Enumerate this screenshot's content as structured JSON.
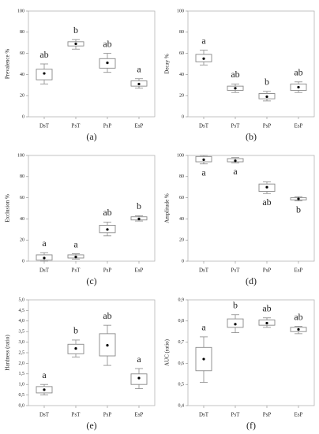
{
  "chart_data": [
    {
      "type": "box",
      "label": "(a)",
      "y_label": "Prevalence %",
      "categories": [
        "DsT",
        "PsT",
        "PsP",
        "EsP"
      ],
      "whisker_low": [
        31,
        64,
        42,
        27
      ],
      "q1": [
        35,
        67,
        46,
        29
      ],
      "q3": [
        45,
        71,
        55,
        34
      ],
      "whisker_high": [
        50,
        73,
        60,
        36
      ],
      "mean": [
        41,
        69,
        51,
        31
      ],
      "letters": [
        "ab",
        "b",
        "ab",
        "a"
      ],
      "letter_position": "above",
      "ylim": [
        0,
        100
      ],
      "yticks": [
        0,
        20,
        40,
        60,
        80,
        100
      ],
      "color": "#888888"
    },
    {
      "type": "box",
      "label": "(b)",
      "y_label": "Decay %",
      "categories": [
        "DsT",
        "PsT",
        "PsP",
        "EsP"
      ],
      "whisker_low": [
        49,
        23,
        15,
        23
      ],
      "q1": [
        52,
        25,
        17,
        25
      ],
      "q3": [
        59,
        29,
        22,
        31
      ],
      "whisker_high": [
        63,
        31,
        24,
        33
      ],
      "mean": [
        55,
        27,
        19,
        28
      ],
      "letters": [
        "a",
        "ab",
        "b",
        "ab"
      ],
      "letter_position": "above",
      "ylim": [
        0,
        100
      ],
      "yticks": [
        0,
        20,
        40,
        60,
        80,
        100
      ],
      "color": "#888888"
    },
    {
      "type": "box",
      "label": "(c)",
      "y_label": "Exclusion %",
      "categories": [
        "DsT",
        "PsT",
        "PsP",
        "EsP"
      ],
      "whisker_low": [
        0,
        2,
        24,
        38
      ],
      "q1": [
        1,
        3,
        27,
        39
      ],
      "q3": [
        6,
        6,
        34,
        42
      ],
      "whisker_high": [
        8,
        7,
        37,
        43
      ],
      "mean": [
        3,
        4,
        30,
        40
      ],
      "letters": [
        "a",
        "a",
        "ab",
        "b"
      ],
      "letter_position": "above",
      "ylim": [
        0,
        100
      ],
      "yticks": [
        0,
        20,
        40,
        60,
        80,
        100
      ],
      "color": "#888888"
    },
    {
      "type": "box",
      "label": "(d)",
      "y_label": "Amplitude %",
      "categories": [
        "DsT",
        "PsT",
        "PsP",
        "EsP"
      ],
      "whisker_low": [
        92,
        93,
        64,
        57
      ],
      "q1": [
        94,
        94,
        66,
        58
      ],
      "q3": [
        99,
        97,
        73,
        60
      ],
      "whisker_high": [
        100,
        98,
        75,
        61
      ],
      "mean": [
        96,
        95,
        70,
        59
      ],
      "letters": [
        "a",
        "a",
        "ab",
        "b"
      ],
      "letter_position": "below",
      "ylim": [
        0,
        100
      ],
      "yticks": [
        0,
        20,
        40,
        60,
        80,
        100
      ],
      "color": "#888888"
    },
    {
      "type": "box",
      "label": "(e)",
      "y_label": "Hardness (ratio)",
      "categories": [
        "DsT",
        "PsT",
        "PsP",
        "EsP"
      ],
      "whisker_low": [
        0.5,
        2.3,
        1.9,
        0.8
      ],
      "q1": [
        0.6,
        2.45,
        2.35,
        1.0
      ],
      "q3": [
        0.9,
        2.9,
        3.4,
        1.5
      ],
      "whisker_high": [
        1.0,
        3.1,
        3.8,
        1.75
      ],
      "mean": [
        0.75,
        2.7,
        2.85,
        1.3
      ],
      "letters": [
        "a",
        "b",
        "ab",
        "a"
      ],
      "letter_position": "above",
      "ylim": [
        0,
        5
      ],
      "yticks": [
        {
          "value": 0,
          "label": "0,0"
        },
        {
          "value": 0.5,
          "label": "0,5"
        },
        {
          "value": 1,
          "label": "1,0"
        },
        {
          "value": 1.5,
          "label": "1,5"
        },
        {
          "value": 2,
          "label": "2,0"
        },
        {
          "value": 2.5,
          "label": "2,5"
        },
        {
          "value": 3,
          "label": "3,0"
        },
        {
          "value": 3.5,
          "label": "3,5"
        },
        {
          "value": 4,
          "label": "4,0"
        },
        {
          "value": 4.5,
          "label": "4,5"
        },
        {
          "value": 5,
          "label": "5,0"
        }
      ],
      "color": "#888888"
    },
    {
      "type": "box",
      "label": "(f)",
      "y_label": "AUC (ratio)",
      "categories": [
        "DsT",
        "PsT",
        "PsP",
        "EsP"
      ],
      "whisker_low": [
        0.51,
        0.745,
        0.77,
        0.74
      ],
      "q1": [
        0.565,
        0.77,
        0.78,
        0.75
      ],
      "q3": [
        0.675,
        0.81,
        0.805,
        0.77
      ],
      "whisker_high": [
        0.725,
        0.83,
        0.815,
        0.775
      ],
      "mean": [
        0.62,
        0.785,
        0.79,
        0.76
      ],
      "letters": [
        "a",
        "b",
        "ab",
        "ab"
      ],
      "letter_position": "above",
      "ylim": [
        0.4,
        0.9
      ],
      "yticks": [
        {
          "value": 0.4,
          "label": "0,4"
        },
        {
          "value": 0.5,
          "label": "0,5"
        },
        {
          "value": 0.6,
          "label": "0,6"
        },
        {
          "value": 0.7,
          "label": "0,7"
        },
        {
          "value": 0.8,
          "label": "0,8"
        },
        {
          "value": 0.9,
          "label": "0,9"
        }
      ],
      "color": "#888888"
    }
  ]
}
